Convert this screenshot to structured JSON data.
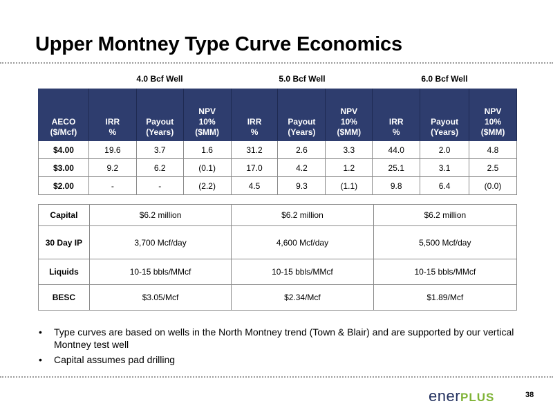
{
  "title": "Upper Montney Type Curve Economics",
  "group_headers": [
    "4.0 Bcf Well",
    "5.0 Bcf Well",
    "6.0 Bcf Well"
  ],
  "economics_table": {
    "header": [
      {
        "line1": "AECO",
        "line2": "($/Mcf)"
      },
      {
        "line1": "IRR",
        "line2": "%"
      },
      {
        "line1": "Payout",
        "line2": "(Years)"
      },
      {
        "line0": "NPV",
        "line1": "10%",
        "line2": "($MM)"
      },
      {
        "line1": "IRR",
        "line2": "%"
      },
      {
        "line1": "Payout",
        "line2": "(Years)"
      },
      {
        "line0": "NPV",
        "line1": "10%",
        "line2": "($MM)"
      },
      {
        "line1": "IRR",
        "line2": "%"
      },
      {
        "line1": "Payout",
        "line2": "(Years)"
      },
      {
        "line0": "NPV",
        "line1": "10%",
        "line2": "($MM)"
      }
    ],
    "rows": [
      [
        "$4.00",
        "19.6",
        "3.7",
        "1.6",
        "31.2",
        "2.6",
        "3.3",
        "44.0",
        "2.0",
        "4.8"
      ],
      [
        "$3.00",
        "9.2",
        "6.2",
        "(0.1)",
        "17.0",
        "4.2",
        "1.2",
        "25.1",
        "3.1",
        "2.5"
      ],
      [
        "$2.00",
        "-",
        "-",
        "(2.2)",
        "4.5",
        "9.3",
        "(1.1)",
        "9.8",
        "6.4",
        "(0.0)"
      ]
    ]
  },
  "cost_table": {
    "rows": [
      {
        "label": "Capital",
        "values": [
          "$6.2 million",
          "$6.2 million",
          "$6.2 million"
        ]
      },
      {
        "label": "30 Day IP",
        "values": [
          "3,700 Mcf/day",
          "4,600 Mcf/day",
          "5,500 Mcf/day"
        ]
      },
      {
        "label": "Liquids",
        "values": [
          "10-15 bbls/MMcf",
          "10-15 bbls/MMcf",
          "10-15 bbls/MMcf"
        ]
      },
      {
        "label": "BESC",
        "values": [
          "$3.05/Mcf",
          "$2.34/Mcf",
          "$1.89/Mcf"
        ]
      }
    ]
  },
  "bullets": [
    "Type curves are based on wells in the North Montney trend (Town & Blair) and are supported by our vertical Montney test well",
    "Capital assumes pad drilling"
  ],
  "bullet_glyph": "•",
  "logo": {
    "part1": "ener",
    "part2": "PLUS"
  },
  "page_number": "38",
  "colors": {
    "header_bg": "#2e3d6e",
    "logo_navy": "#22305e",
    "logo_green": "#7fb336"
  }
}
